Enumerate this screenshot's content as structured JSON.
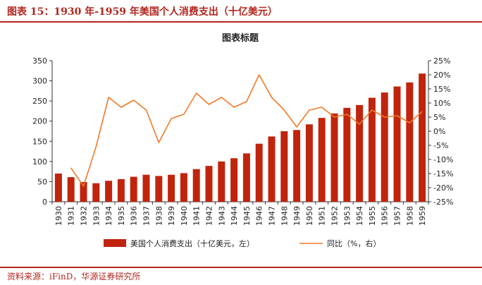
{
  "figure_title": "图表 15：1930 年-1959 年美国个人消费支出（十亿美元）",
  "source": "资料来源：iFinD，华源证券研究所",
  "colors": {
    "bar": "#c0240c",
    "line": "#f07a28",
    "accent": "#b3261e"
  },
  "chart_data": {
    "type": "bar",
    "title": "图表标题",
    "categories": [
      "1930",
      "1931",
      "1932",
      "1933",
      "1934",
      "1935",
      "1936",
      "1937",
      "1938",
      "1939",
      "1940",
      "1941",
      "1942",
      "1943",
      "1944",
      "1945",
      "1946",
      "1947",
      "1948",
      "1949",
      "1950",
      "1951",
      "1952",
      "1953",
      "1954",
      "1955",
      "1956",
      "1957",
      "1958",
      "1959"
    ],
    "series": [
      {
        "name": "美国个人消费支出（十亿美元，左）",
        "type": "bar",
        "axis": "left",
        "values": [
          70,
          61,
          49,
          46,
          52,
          56,
          62,
          67,
          64,
          67,
          71,
          81,
          89,
          100,
          108,
          120,
          144,
          162,
          175,
          178,
          192,
          208,
          219,
          233,
          240,
          258,
          271,
          286,
          296,
          318
        ]
      },
      {
        "name": "同比（%，右）",
        "type": "line",
        "axis": "right",
        "values": [
          null,
          -13.0,
          -19.5,
          -5.5,
          12.0,
          8.5,
          11.0,
          7.5,
          -4.0,
          4.5,
          6.0,
          13.5,
          9.5,
          12.0,
          8.5,
          10.5,
          20.0,
          12.0,
          7.5,
          1.5,
          7.5,
          8.5,
          5.0,
          6.0,
          2.5,
          7.5,
          5.0,
          5.5,
          3.0,
          7.0
        ]
      }
    ],
    "y_left": {
      "min": 0,
      "max": 350,
      "step": 50,
      "ticks": [
        "0",
        "50",
        "100",
        "150",
        "200",
        "250",
        "300",
        "350"
      ]
    },
    "y_right": {
      "min": -25,
      "max": 25,
      "step": 5,
      "ticks": [
        "-25%",
        "-20%",
        "-15%",
        "-10%",
        "-5%",
        "0%",
        "5%",
        "10%",
        "15%",
        "20%",
        "25%"
      ]
    },
    "legend": {
      "position": "bottom",
      "items": [
        {
          "label": "美国个人消费支出（十亿美元，左）",
          "kind": "bar"
        },
        {
          "label": "同比（%，右）",
          "kind": "line"
        }
      ]
    }
  }
}
